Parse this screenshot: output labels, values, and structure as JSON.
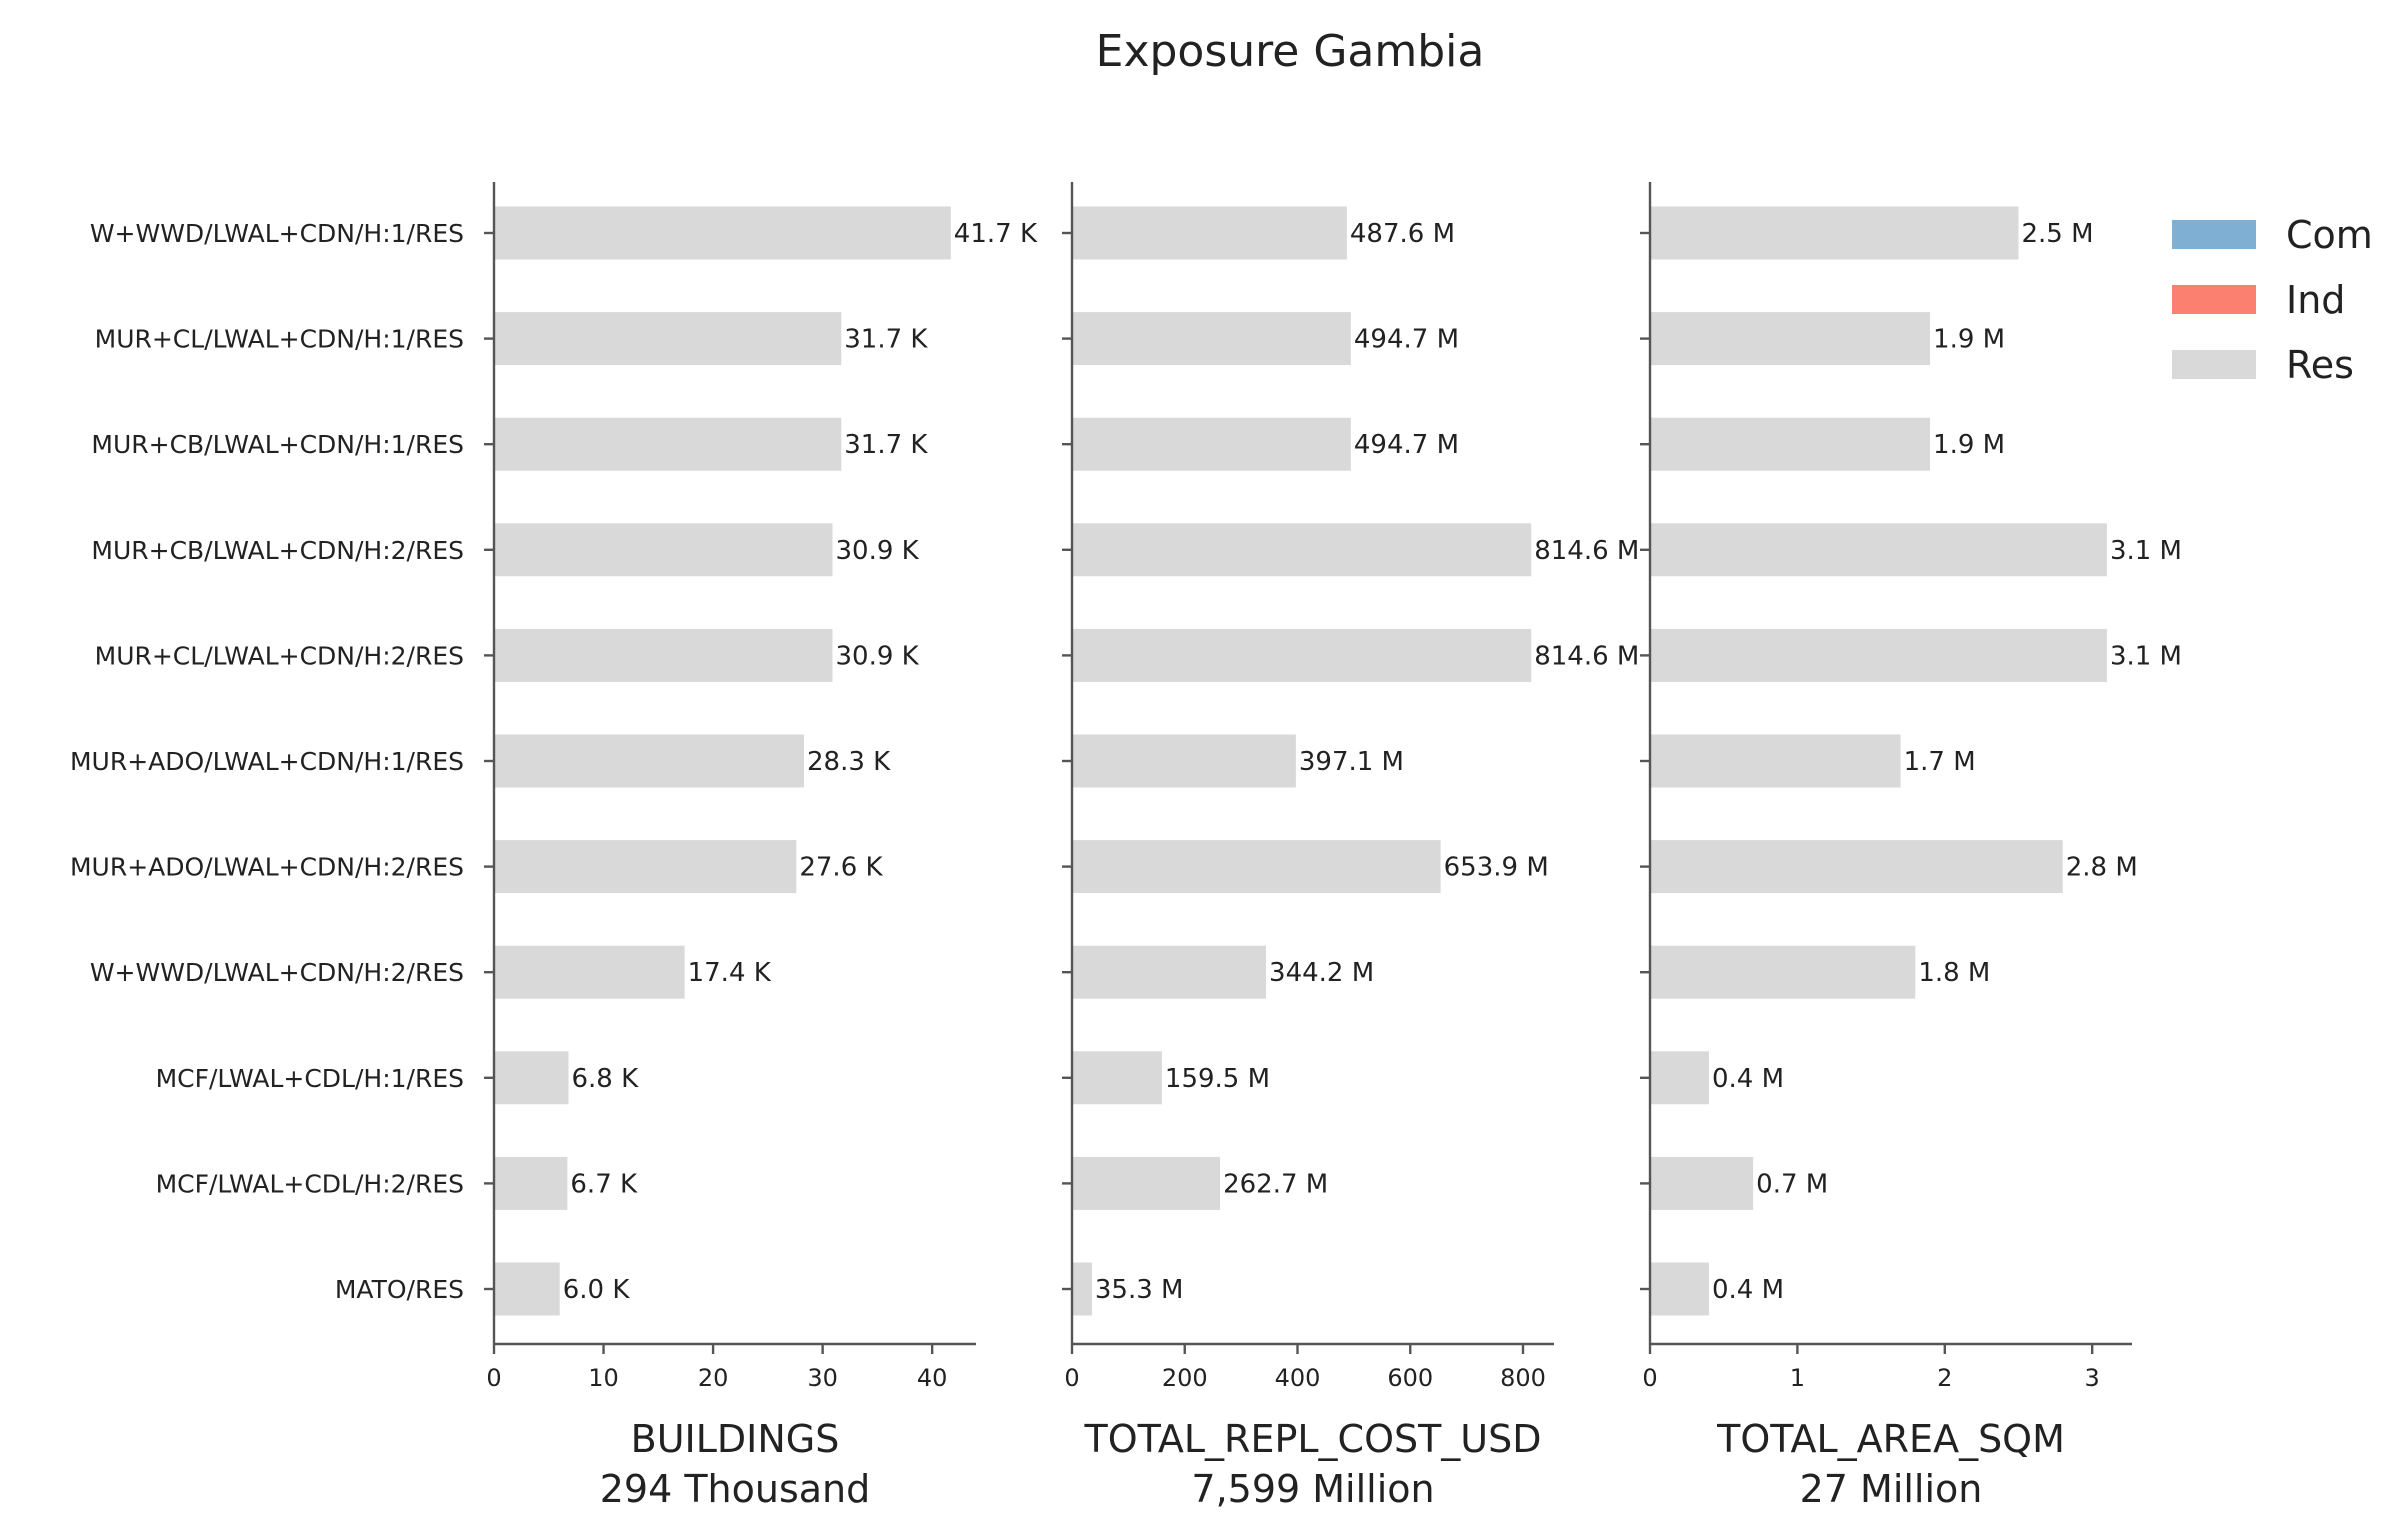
{
  "chart_data": {
    "type": "bar",
    "orientation": "horizontal",
    "title": "Exposure Gambia",
    "categories": [
      "W+WWD/LWAL+CDN/H:1/RES",
      "MUR+CL/LWAL+CDN/H:1/RES",
      "MUR+CB/LWAL+CDN/H:1/RES",
      "MUR+CB/LWAL+CDN/H:2/RES",
      "MUR+CL/LWAL+CDN/H:2/RES",
      "MUR+ADO/LWAL+CDN/H:1/RES",
      "MUR+ADO/LWAL+CDN/H:2/RES",
      "W+WWD/LWAL+CDN/H:2/RES",
      "MCF/LWAL+CDL/H:1/RES",
      "MCF/LWAL+CDL/H:2/RES",
      "MATO/RES"
    ],
    "legend": {
      "placement": "top-right",
      "entries": [
        {
          "name": "Com",
          "color": "#7fb0d3"
        },
        {
          "name": "Ind",
          "color": "#fb8070"
        },
        {
          "name": "Res",
          "color": "#d9d9d9"
        }
      ]
    },
    "panels": [
      {
        "xlabel": "BUILDINGS",
        "subtitle": "294 Thousand",
        "xlim": [
          0,
          44
        ],
        "xticks": [
          0,
          10,
          20,
          30,
          40
        ],
        "values": [
          41.7,
          31.7,
          31.7,
          30.9,
          30.9,
          28.3,
          27.6,
          17.4,
          6.8,
          6.7,
          6.0
        ],
        "labels": [
          "41.7 K",
          "31.7 K",
          "31.7 K",
          "30.9 K",
          "30.9 K",
          "28.3 K",
          "27.6 K",
          "17.4 K",
          "6.8 K",
          "6.7 K",
          "6.0 K"
        ],
        "series": "Res"
      },
      {
        "xlabel": "TOTAL_REPL_COST_USD",
        "subtitle": "7,599 Million",
        "xlim": [
          0,
          855
        ],
        "xticks": [
          0,
          200,
          400,
          600,
          800
        ],
        "values": [
          487.6,
          494.7,
          494.7,
          814.6,
          814.6,
          397.1,
          653.9,
          344.2,
          159.5,
          262.7,
          35.3
        ],
        "labels": [
          "487.6 M",
          "494.7 M",
          "494.7 M",
          "814.6 M",
          "814.6 M",
          "397.1 M",
          "653.9 M",
          "344.2 M",
          "159.5 M",
          "262.7 M",
          "35.3 M"
        ],
        "series": "Res"
      },
      {
        "xlabel": "TOTAL_AREA_SQM",
        "subtitle": "27 Million",
        "xlim": [
          0,
          3.27
        ],
        "xticks": [
          0,
          1,
          2,
          3
        ],
        "values": [
          2.5,
          1.9,
          1.9,
          3.1,
          3.1,
          1.7,
          2.8,
          1.8,
          0.4,
          0.7,
          0.4
        ],
        "labels": [
          "2.5 M",
          "1.9 M",
          "1.9 M",
          "3.1 M",
          "3.1 M",
          "1.7 M",
          "2.8 M",
          "1.8 M",
          "0.4 M",
          "0.7 M",
          "0.4 M"
        ],
        "series": "Res"
      }
    ],
    "grid": false
  }
}
